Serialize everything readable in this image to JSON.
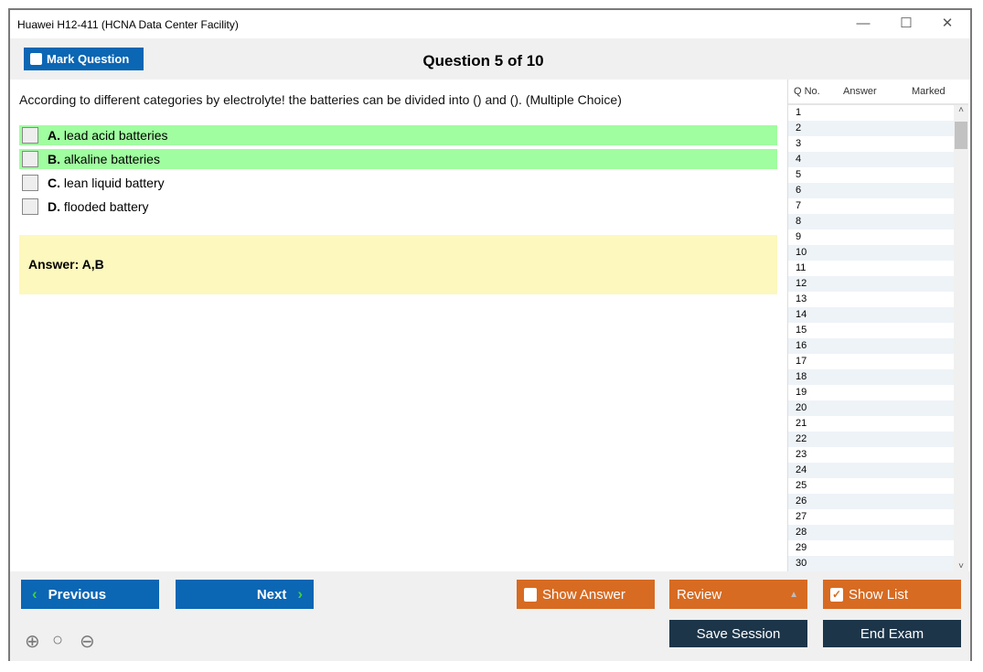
{
  "window": {
    "title": "Huawei H12-411 (HCNA Data Center Facility)",
    "minimize": "—",
    "maximize": "☐",
    "close": "✕"
  },
  "toolbar": {
    "mark_label": "Mark Question",
    "question_title": "Question 5 of 10"
  },
  "question": {
    "text": "According to different categories by electrolyte! the batteries can be divided into () and (). (Multiple Choice)",
    "options": [
      {
        "letter": "A.",
        "text": "lead acid batteries",
        "highlighted": true
      },
      {
        "letter": "B.",
        "text": "alkaline batteries",
        "highlighted": true
      },
      {
        "letter": "C.",
        "text": "lean liquid battery",
        "highlighted": false
      },
      {
        "letter": "D.",
        "text": "flooded battery",
        "highlighted": false
      }
    ],
    "answer": "Answer: A,B"
  },
  "list": {
    "headers": [
      "Q No.",
      "Answer",
      "Marked"
    ],
    "rows": [
      "1",
      "2",
      "3",
      "4",
      "5",
      "6",
      "7",
      "8",
      "9",
      "10",
      "11",
      "12",
      "13",
      "14",
      "15",
      "16",
      "17",
      "18",
      "19",
      "20",
      "21",
      "22",
      "23",
      "24",
      "25",
      "26",
      "27",
      "28",
      "29",
      "30"
    ]
  },
  "buttons": {
    "previous": "Previous",
    "next": "Next",
    "show_answer": "Show Answer",
    "review": "Review",
    "show_list": "Show List",
    "save_session": "Save Session",
    "end_exam": "End Exam"
  },
  "colors": {
    "blue": "#0b66b4",
    "orange": "#d76b22",
    "dark": "#1c3549",
    "correct": "#a0fda0",
    "answer_bg": "#fdf8bd"
  }
}
